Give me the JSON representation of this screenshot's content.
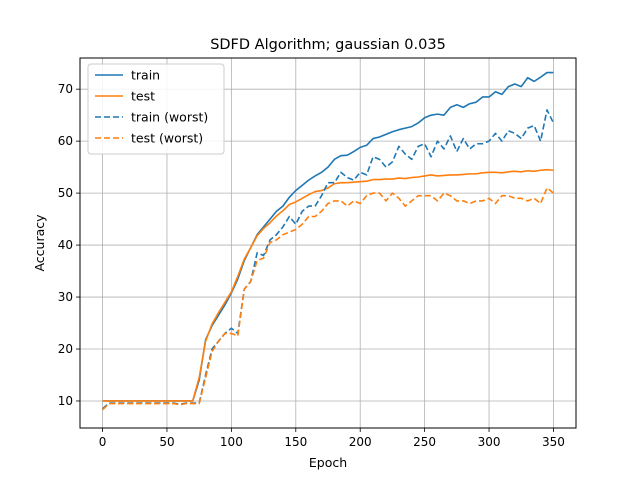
{
  "chart_data": {
    "type": "line",
    "title": "SDFD Algorithm; gaussian 0.035",
    "xlabel": "Epoch",
    "ylabel": "Accuracy",
    "xlim": [
      -17.5,
      367.5
    ],
    "ylim": [
      4.8,
      76
    ],
    "xticks": [
      0,
      50,
      100,
      150,
      200,
      250,
      300,
      350
    ],
    "yticks": [
      10,
      20,
      30,
      40,
      50,
      60,
      70
    ],
    "grid": true,
    "legend_position": "top-left",
    "colors": {
      "blue": "#1f77b4",
      "orange": "#ff7f0e",
      "grid": "#b0b0b0"
    },
    "x": [
      0,
      5,
      10,
      15,
      20,
      25,
      30,
      35,
      40,
      45,
      50,
      55,
      60,
      65,
      70,
      75,
      80,
      85,
      90,
      95,
      100,
      105,
      110,
      115,
      120,
      125,
      130,
      135,
      140,
      145,
      150,
      155,
      160,
      165,
      170,
      175,
      180,
      185,
      190,
      195,
      200,
      205,
      210,
      215,
      220,
      225,
      230,
      235,
      240,
      245,
      250,
      255,
      260,
      265,
      270,
      275,
      280,
      285,
      290,
      295,
      300,
      305,
      310,
      315,
      320,
      325,
      330,
      335,
      340,
      345,
      350
    ],
    "series": [
      {
        "name": "train",
        "color": "#1f77b4",
        "dash": "solid",
        "values": [
          10,
          10,
          10,
          10,
          10,
          10,
          10,
          10,
          10,
          10,
          10,
          10,
          10,
          10,
          10,
          14,
          21.8,
          24.5,
          26.5,
          28.5,
          30.8,
          33.5,
          37,
          39.5,
          42,
          43.5,
          45,
          46.5,
          47.5,
          49.2,
          50.5,
          51.5,
          52.5,
          53.3,
          54,
          55,
          56.5,
          57.2,
          57.3,
          58,
          58.8,
          59.2,
          60.5,
          60.8,
          61.3,
          61.8,
          62.2,
          62.5,
          62.8,
          63.5,
          64.5,
          65,
          65.2,
          65,
          66.5,
          67,
          66.5,
          67.2,
          67.5,
          68.5,
          68.5,
          69.5,
          69,
          70.5,
          71,
          70.5,
          72.2,
          71.5,
          72.3,
          73.2,
          73.2
        ]
      },
      {
        "name": "test",
        "color": "#ff7f0e",
        "dash": "solid",
        "values": [
          10,
          10,
          10,
          10,
          10,
          10,
          10,
          10,
          10,
          10,
          10,
          10,
          10,
          10,
          10,
          14.5,
          21.5,
          24.8,
          27,
          29,
          31,
          34,
          37.3,
          39.5,
          41.8,
          43.2,
          44.3,
          45.6,
          46.6,
          47.8,
          48.3,
          49,
          49.7,
          50.3,
          50.5,
          51,
          51.8,
          52,
          52,
          52.1,
          52.2,
          52.3,
          52.6,
          52.6,
          52.7,
          52.7,
          52.9,
          52.8,
          53,
          53.1,
          53.3,
          53.5,
          53.3,
          53.4,
          53.5,
          53.5,
          53.6,
          53.7,
          53.7,
          53.9,
          54,
          54,
          53.9,
          54.1,
          54.2,
          54.1,
          54.3,
          54.2,
          54.4,
          54.5,
          54.4
        ]
      },
      {
        "name": "train (worst)",
        "color": "#1f77b4",
        "dash": "dashed",
        "values": [
          8.5,
          9.6,
          9.6,
          9.6,
          9.6,
          9.6,
          9.6,
          9.6,
          9.6,
          9.6,
          9.6,
          9.6,
          9.4,
          9.6,
          9.6,
          9.6,
          15,
          20,
          21.5,
          23,
          24,
          23,
          31.5,
          33,
          38.5,
          38,
          41,
          42,
          43.5,
          45.5,
          44,
          46.5,
          47.5,
          47.5,
          49.5,
          52,
          52,
          54,
          53,
          52.5,
          54,
          53.5,
          57,
          56.5,
          55,
          56,
          59,
          57.5,
          56.5,
          59,
          59.5,
          57,
          60,
          58.5,
          61,
          58,
          60.5,
          58.5,
          59.5,
          59.5,
          60,
          61.5,
          60,
          62,
          61.5,
          60.5,
          62.5,
          63,
          60,
          66,
          63.5
        ]
      },
      {
        "name": "test (worst)",
        "color": "#ff7f0e",
        "dash": "dashed",
        "values": [
          8.3,
          9.5,
          9.5,
          9.5,
          9.5,
          9.5,
          9.5,
          9.5,
          9.5,
          9.5,
          9.5,
          9.5,
          9.3,
          9.5,
          9.5,
          9.5,
          14.5,
          19.5,
          21.5,
          23,
          23,
          22.5,
          31.5,
          33,
          37,
          37.5,
          40.5,
          41,
          42,
          42.5,
          43,
          44,
          45.5,
          45.5,
          46.5,
          48,
          48.5,
          48.5,
          47.5,
          48.5,
          48,
          49.5,
          50,
          50,
          48.5,
          50,
          49,
          47.5,
          48.5,
          49.5,
          49.5,
          49.5,
          48.5,
          50,
          49.5,
          48.5,
          48.5,
          48,
          48.5,
          48.5,
          49,
          48,
          49.5,
          49.5,
          49,
          49,
          48.5,
          49,
          48,
          51,
          50
        ]
      }
    ]
  }
}
